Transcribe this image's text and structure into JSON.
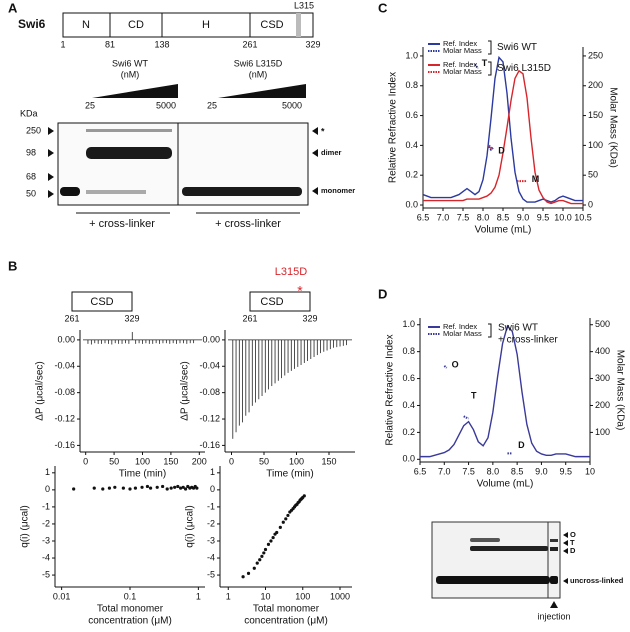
{
  "panel_labels": [
    "A",
    "B",
    "C",
    "D"
  ],
  "panel_a": {
    "protein": "Swi6",
    "domains": [
      "N",
      "CD",
      "H",
      "CSD"
    ],
    "positions": [
      1,
      81,
      138,
      261,
      329
    ],
    "mutation": "L315",
    "gel": {
      "unit": "KDa",
      "markers": [
        250,
        98,
        68,
        50
      ],
      "samples": [
        {
          "name": "Swi6 WT",
          "unit": "(nM)",
          "low": 25,
          "high": 5000
        },
        {
          "name": "Swi6 L315D",
          "unit": "(nM)",
          "low": 25,
          "high": 5000
        }
      ],
      "bands": [
        "*",
        "dimer",
        "monomer"
      ],
      "treatment": [
        "+ cross-linker",
        "+ cross-linker"
      ]
    }
  },
  "panel_b": {
    "constructs": [
      {
        "domain": "CSD",
        "start": 261,
        "end": 329
      },
      {
        "domain": "CSD",
        "start": 261,
        "end": 329,
        "mutation": "L315D",
        "marker": "*"
      }
    ]
  },
  "panel_d": {
    "gel": {
      "bands": [
        "O",
        "T",
        "D",
        "uncross-linked"
      ],
      "note": "injection"
    }
  },
  "chart_data": [
    {
      "type": "stem",
      "ylabel": "ΔP (μcal/sec)",
      "xlabel": "Time (min)",
      "color": "#222222",
      "xlim": [
        -10,
        210
      ],
      "xticks": [
        0,
        50,
        100,
        150,
        200
      ],
      "ylim": [
        -0.17,
        0.015
      ],
      "yticks": [
        {
          "value": 0,
          "label": "0.00"
        },
        -0.04,
        -0.08,
        -0.12,
        -0.16
      ],
      "x": [
        4,
        10,
        16,
        22,
        28,
        34,
        40,
        46,
        52,
        58,
        64,
        70,
        76,
        82,
        88,
        94,
        100,
        106,
        112,
        118,
        124,
        130,
        136,
        142,
        148,
        154,
        160,
        166,
        172,
        178,
        184,
        190
      ],
      "values": [
        -0.006,
        -0.007,
        -0.005,
        -0.006,
        -0.006,
        -0.005,
        -0.006,
        -0.007,
        -0.005,
        -0.006,
        -0.006,
        -0.005,
        -0.006,
        0.012,
        -0.006,
        -0.005,
        -0.006,
        -0.005,
        -0.006,
        -0.006,
        -0.005,
        -0.006,
        -0.005,
        -0.005,
        -0.006,
        -0.005,
        -0.006,
        -0.005,
        -0.005,
        -0.006,
        -0.005,
        -0.005
      ]
    },
    {
      "type": "stem",
      "ylabel": "ΔP (μcal/sec)",
      "xlabel": "Time (min)",
      "color": "#222222",
      "xlim": [
        -10,
        190
      ],
      "xticks": [
        0,
        50,
        100,
        150
      ],
      "ylim": [
        -0.17,
        0.015
      ],
      "yticks": [
        {
          "value": 0,
          "label": "0.00"
        },
        -0.04,
        -0.08,
        -0.12,
        -0.16
      ],
      "x": [
        2,
        7,
        12,
        17,
        22,
        27,
        32,
        37,
        42,
        47,
        52,
        57,
        62,
        67,
        72,
        77,
        82,
        87,
        92,
        97,
        102,
        107,
        112,
        117,
        122,
        127,
        132,
        137,
        142,
        147,
        152,
        157,
        162,
        167,
        172,
        177
      ],
      "values": [
        -0.15,
        -0.14,
        -0.13,
        -0.125,
        -0.115,
        -0.11,
        -0.1,
        -0.095,
        -0.09,
        -0.085,
        -0.08,
        -0.075,
        -0.07,
        -0.066,
        -0.062,
        -0.058,
        -0.054,
        -0.05,
        -0.047,
        -0.044,
        -0.041,
        -0.038,
        -0.035,
        -0.032,
        -0.029,
        -0.026,
        -0.023,
        -0.02,
        -0.018,
        -0.016,
        -0.014,
        -0.012,
        -0.011,
        -0.01,
        -0.009,
        -0.008
      ]
    },
    {
      "type": "scatter",
      "ylabel": "q(i) (μcal)",
      "xlabel": [
        "Total monomer",
        "concentration (μM)"
      ],
      "color": "#111111",
      "log_x": true,
      "xlim": [
        0.008,
        1.25
      ],
      "xticks": [
        0.01,
        0.1,
        1
      ],
      "ylim": [
        -5.7,
        1.4
      ],
      "yticks": [
        1,
        0,
        -1,
        -2,
        -3,
        -4,
        -5
      ],
      "x": [
        0.015,
        0.03,
        0.04,
        0.05,
        0.06,
        0.08,
        0.1,
        0.12,
        0.15,
        0.18,
        0.2,
        0.25,
        0.3,
        0.35,
        0.4,
        0.45,
        0.5,
        0.55,
        0.6,
        0.65,
        0.7,
        0.75,
        0.8,
        0.85,
        0.9,
        0.95
      ],
      "values": [
        0.05,
        0.1,
        0.05,
        0.1,
        0.15,
        0.1,
        0.05,
        0.1,
        0.15,
        0.2,
        0.1,
        0.15,
        0.2,
        0.05,
        0.1,
        0.15,
        0.2,
        0.1,
        0.15,
        0.05,
        0.2,
        0.1,
        0.15,
        0.1,
        0.2,
        0.1
      ]
    },
    {
      "type": "scatter",
      "ylabel": "q(i) (μcal)",
      "xlabel": [
        "Total monomer",
        "concentration (μM)"
      ],
      "color": "#111111",
      "log_x": true,
      "xlim": [
        0.6,
        2100
      ],
      "xticks": [
        1,
        10,
        100,
        1000
      ],
      "ylim": [
        -5.7,
        1.4
      ],
      "yticks": [
        1,
        0,
        -1,
        -2,
        -3,
        -4,
        -5
      ],
      "x": [
        2.5,
        3.5,
        5,
        6,
        7,
        8,
        9,
        10,
        12,
        14,
        16,
        18,
        20,
        25,
        30,
        35,
        40,
        45,
        50,
        55,
        60,
        65,
        70,
        75,
        80,
        85,
        90,
        95,
        100,
        110
      ],
      "values": [
        -5.1,
        -4.9,
        -4.6,
        -4.3,
        -4.1,
        -3.9,
        -3.7,
        -3.5,
        -3.2,
        -3.0,
        -2.8,
        -2.6,
        -2.5,
        -2.2,
        -1.9,
        -1.7,
        -1.5,
        -1.3,
        -1.2,
        -1.1,
        -1.0,
        -0.9,
        -0.85,
        -0.75,
        -0.7,
        -0.6,
        -0.55,
        -0.5,
        -0.45,
        -0.35
      ]
    },
    {
      "type": "line",
      "ylabel": "Relative Refractive Index",
      "y2label": "Molar Mass (KDa)",
      "xlabel": "Volume (mL)",
      "xlim": [
        6.5,
        10.5
      ],
      "xticks": [
        6.5,
        {
          "value": 7,
          "label": "7.0"
        },
        7.5,
        {
          "value": 8,
          "label": "8.0"
        },
        8.5,
        {
          "value": 9,
          "label": "9.0"
        },
        9.5,
        {
          "value": 10,
          "label": "10.0"
        },
        10.5
      ],
      "ylim": [
        -0.02,
        1.06
      ],
      "yticks": [
        {
          "value": 0,
          "label": "0.0"
        },
        0.2,
        0.4,
        0.6,
        0.8,
        {
          "value": 1,
          "label": "1.0"
        }
      ],
      "y2lim": [
        -5,
        265
      ],
      "y2ticks": [
        0,
        50,
        100,
        150,
        200,
        250
      ],
      "annotations": [
        "T",
        "D",
        "M"
      ],
      "series": [
        {
          "name": "Ref. Index",
          "sample": "Swi6 WT",
          "color": "#2b3aa0",
          "x": [
            6.5,
            6.6,
            6.7,
            6.8,
            6.9,
            7.0,
            7.1,
            7.2,
            7.3,
            7.4,
            7.5,
            7.6,
            7.7,
            7.8,
            7.9,
            8.0,
            8.1,
            8.2,
            8.3,
            8.4,
            8.5,
            8.6,
            8.7,
            8.8,
            8.9,
            9.0,
            9.1,
            9.2,
            9.3,
            9.4,
            9.5,
            9.6,
            9.7,
            9.8,
            9.9,
            10.0,
            10.1,
            10.2,
            10.3,
            10.4,
            10.5
          ],
          "values": [
            0.07,
            0.06,
            0.05,
            0.05,
            0.05,
            0.05,
            0.05,
            0.05,
            0.06,
            0.07,
            0.09,
            0.11,
            0.09,
            0.07,
            0.09,
            0.17,
            0.33,
            0.58,
            0.85,
            0.99,
            0.96,
            0.75,
            0.45,
            0.22,
            0.09,
            0.04,
            0.02,
            0.02,
            0.02,
            0.03,
            0.04,
            0.03,
            0.02,
            0.03,
            0.05,
            0.06,
            0.05,
            0.04,
            0.03,
            0.03,
            0.03
          ]
        },
        {
          "name": "Molar Mass",
          "color": "#2b3aa0",
          "dash": true,
          "axis": "y2",
          "x": [
            7.8,
            7.84,
            7.88,
            8.0,
            8.15,
            8.2,
            8.25
          ],
          "values": [
            236,
            232,
            229,
            null,
            98,
            93,
            96
          ]
        },
        {
          "name": "Ref. Index",
          "sample": "Swi6 L315D",
          "color": "#d7262b",
          "x": [
            6.5,
            6.6,
            6.7,
            6.8,
            6.9,
            7.0,
            7.1,
            7.2,
            7.3,
            7.4,
            7.5,
            7.6,
            7.7,
            7.8,
            7.9,
            8.0,
            8.1,
            8.2,
            8.3,
            8.4,
            8.5,
            8.6,
            8.7,
            8.8,
            8.9,
            9.0,
            9.1,
            9.2,
            9.3,
            9.4,
            9.5,
            9.6,
            9.7,
            9.8,
            9.9,
            10.0,
            10.1,
            10.2,
            10.3,
            10.4,
            10.5
          ],
          "values": [
            0.03,
            0.03,
            0.03,
            0.03,
            0.03,
            0.03,
            0.03,
            0.03,
            0.03,
            0.03,
            0.03,
            0.04,
            0.04,
            0.04,
            0.04,
            0.05,
            0.06,
            0.08,
            0.12,
            0.2,
            0.35,
            0.52,
            0.7,
            0.85,
            0.9,
            0.88,
            0.72,
            0.45,
            0.22,
            0.1,
            0.05,
            0.02,
            0.01,
            0.02,
            0.03,
            0.03,
            0.02,
            0.01,
            0.01,
            0.01,
            0.01
          ]
        },
        {
          "name": "Molar Mass",
          "color": "#d7262b",
          "dash": true,
          "axis": "y2",
          "x": [
            8.15,
            8.2,
            8.25,
            8.5,
            8.85,
            8.95,
            9.05,
            9.1
          ],
          "values": [
            100,
            96,
            94,
            null,
            40,
            40,
            40,
            41
          ]
        }
      ]
    },
    {
      "type": "line",
      "ylabel": "Relative Refractive Index",
      "y2label": "Molar Mass (KDa)",
      "xlabel": "Volume (mL)",
      "xlim": [
        6.5,
        10
      ],
      "xticks": [
        6.5,
        {
          "value": 7,
          "label": "7.0"
        },
        7.5,
        {
          "value": 8,
          "label": "8.0"
        },
        8.5,
        {
          "value": 9,
          "label": "9.0"
        },
        9.5,
        10
      ],
      "ylim": [
        -0.02,
        1.05
      ],
      "yticks": [
        {
          "value": 0,
          "label": "0.0"
        },
        0.2,
        0.4,
        0.6,
        0.8,
        {
          "value": 1,
          "label": "1.0"
        }
      ],
      "y2lim": [
        -10,
        525
      ],
      "y2ticks": [
        100,
        200,
        300,
        400,
        500
      ],
      "annotations": [
        "O",
        "T",
        "D"
      ],
      "series": [
        {
          "name": "Ref. Index",
          "sample": [
            "Swi6 WT",
            "+ cross-linker"
          ],
          "color": "#3a3a9a",
          "x": [
            6.5,
            6.6,
            6.7,
            6.8,
            6.9,
            7.0,
            7.1,
            7.2,
            7.3,
            7.4,
            7.5,
            7.6,
            7.7,
            7.8,
            7.9,
            8.0,
            8.1,
            8.2,
            8.3,
            8.4,
            8.5,
            8.6,
            8.7,
            8.8,
            8.9,
            9.0,
            9.1,
            9.2,
            9.3,
            9.4,
            9.5,
            9.6,
            9.7,
            9.8,
            9.9,
            10.0
          ],
          "values": [
            0.02,
            0.02,
            0.02,
            0.03,
            0.04,
            0.05,
            0.07,
            0.11,
            0.18,
            0.25,
            0.28,
            0.22,
            0.13,
            0.1,
            0.16,
            0.35,
            0.62,
            0.86,
            0.99,
            0.95,
            0.78,
            0.5,
            0.26,
            0.12,
            0.06,
            0.04,
            0.03,
            0.03,
            0.04,
            0.04,
            0.04,
            0.03,
            0.02,
            0.02,
            0.02,
            0.02
          ]
        },
        {
          "name": "Molar Mass",
          "color": "#3a3a9a",
          "dash": true,
          "axis": "y2",
          "x": [
            7.0,
            7.05,
            7.2,
            7.4,
            7.45,
            7.5,
            8.0,
            8.3,
            8.35,
            8.4
          ],
          "values": [
            347,
            340,
            null,
            160,
            155,
            152,
            null,
            22,
            22,
            22
          ]
        }
      ]
    }
  ]
}
